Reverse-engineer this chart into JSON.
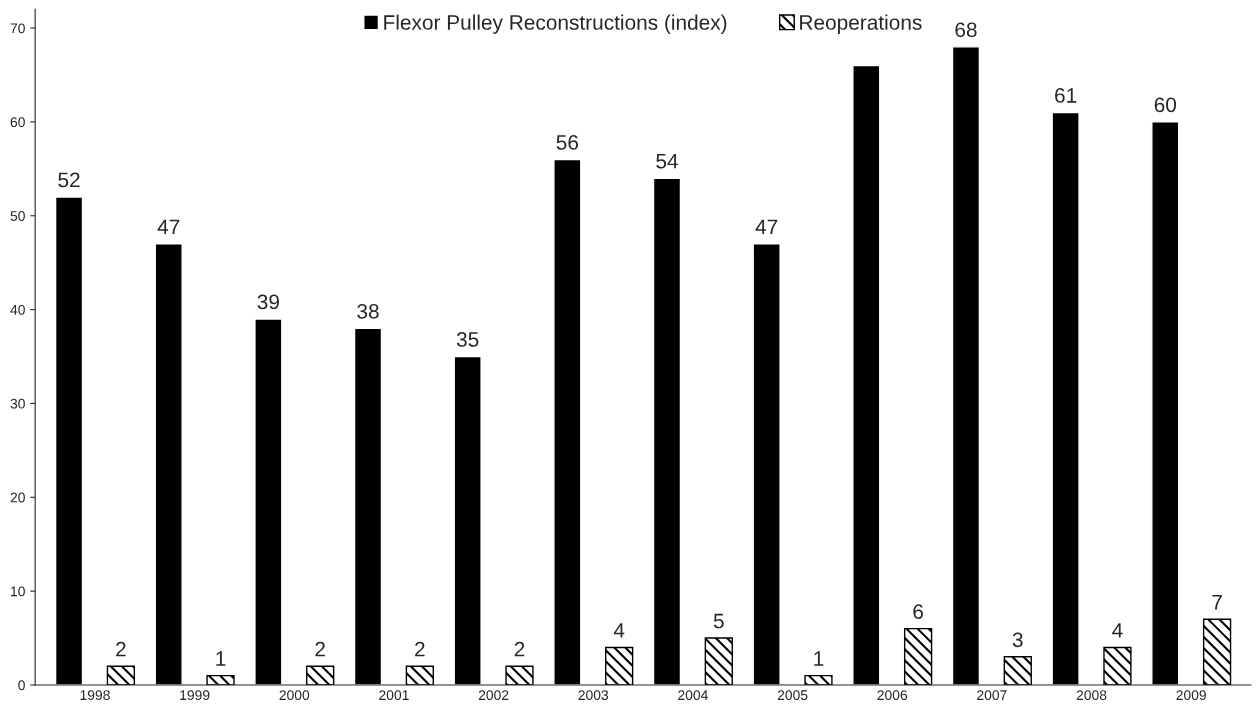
{
  "chart_data": {
    "type": "bar",
    "categories": [
      "1998",
      "1999",
      "2000",
      "2001",
      "2002",
      "2003",
      "2004",
      "2005",
      "2006",
      "2007",
      "2008",
      "2009"
    ],
    "series": [
      {
        "name": "Flexor Pulley Reconstructions (index)",
        "color": "#000000",
        "values": [
          52,
          47,
          39,
          38,
          35,
          56,
          54,
          47,
          66,
          68,
          61,
          60
        ],
        "value_labels": [
          "52",
          "47",
          "39",
          "38",
          "35",
          "56",
          "54",
          "47",
          null,
          "68",
          "61",
          "60"
        ]
      },
      {
        "name": "Reoperations",
        "color": "#000000",
        "values": [
          2,
          1,
          2,
          2,
          2,
          4,
          5,
          1,
          6,
          3,
          4,
          7
        ],
        "value_labels": [
          "2",
          "1",
          "2",
          "2",
          "2",
          "4",
          "5",
          "1",
          "6",
          "3",
          "4",
          "7"
        ]
      }
    ],
    "ylim": [
      0,
      72
    ],
    "yticks": [
      0,
      10,
      20,
      30,
      40,
      50,
      60,
      70
    ],
    "grid": false,
    "legend": "top"
  }
}
